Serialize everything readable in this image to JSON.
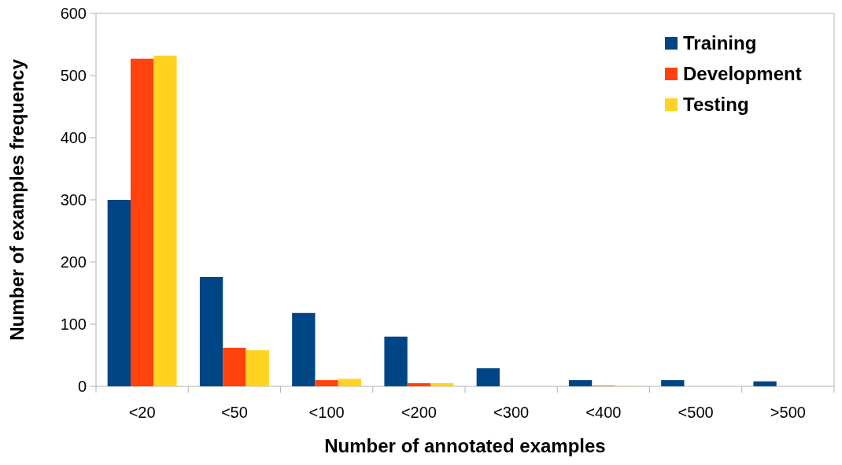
{
  "chart_data": {
    "type": "bar",
    "xlabel": "Number of annotated examples",
    "ylabel": "Number of examples frequency",
    "categories": [
      "<20",
      "<50",
      "<100",
      "<200",
      "<300",
      "<400",
      "<500",
      ">500"
    ],
    "series": [
      {
        "name": "Training",
        "color": "#004586",
        "values": [
          300,
          176,
          118,
          80,
          29,
          10,
          10,
          8
        ]
      },
      {
        "name": "Development",
        "color": "#ff420e",
        "values": [
          527,
          62,
          10,
          5,
          0,
          1,
          0,
          0
        ]
      },
      {
        "name": "Testing",
        "color": "#ffd320",
        "values": [
          532,
          58,
          12,
          5,
          0,
          1,
          0,
          0
        ]
      }
    ],
    "ylim": [
      0,
      600
    ],
    "yticks": [
      0,
      100,
      200,
      300,
      400,
      500,
      600
    ],
    "grid": false,
    "legend": "top right"
  }
}
